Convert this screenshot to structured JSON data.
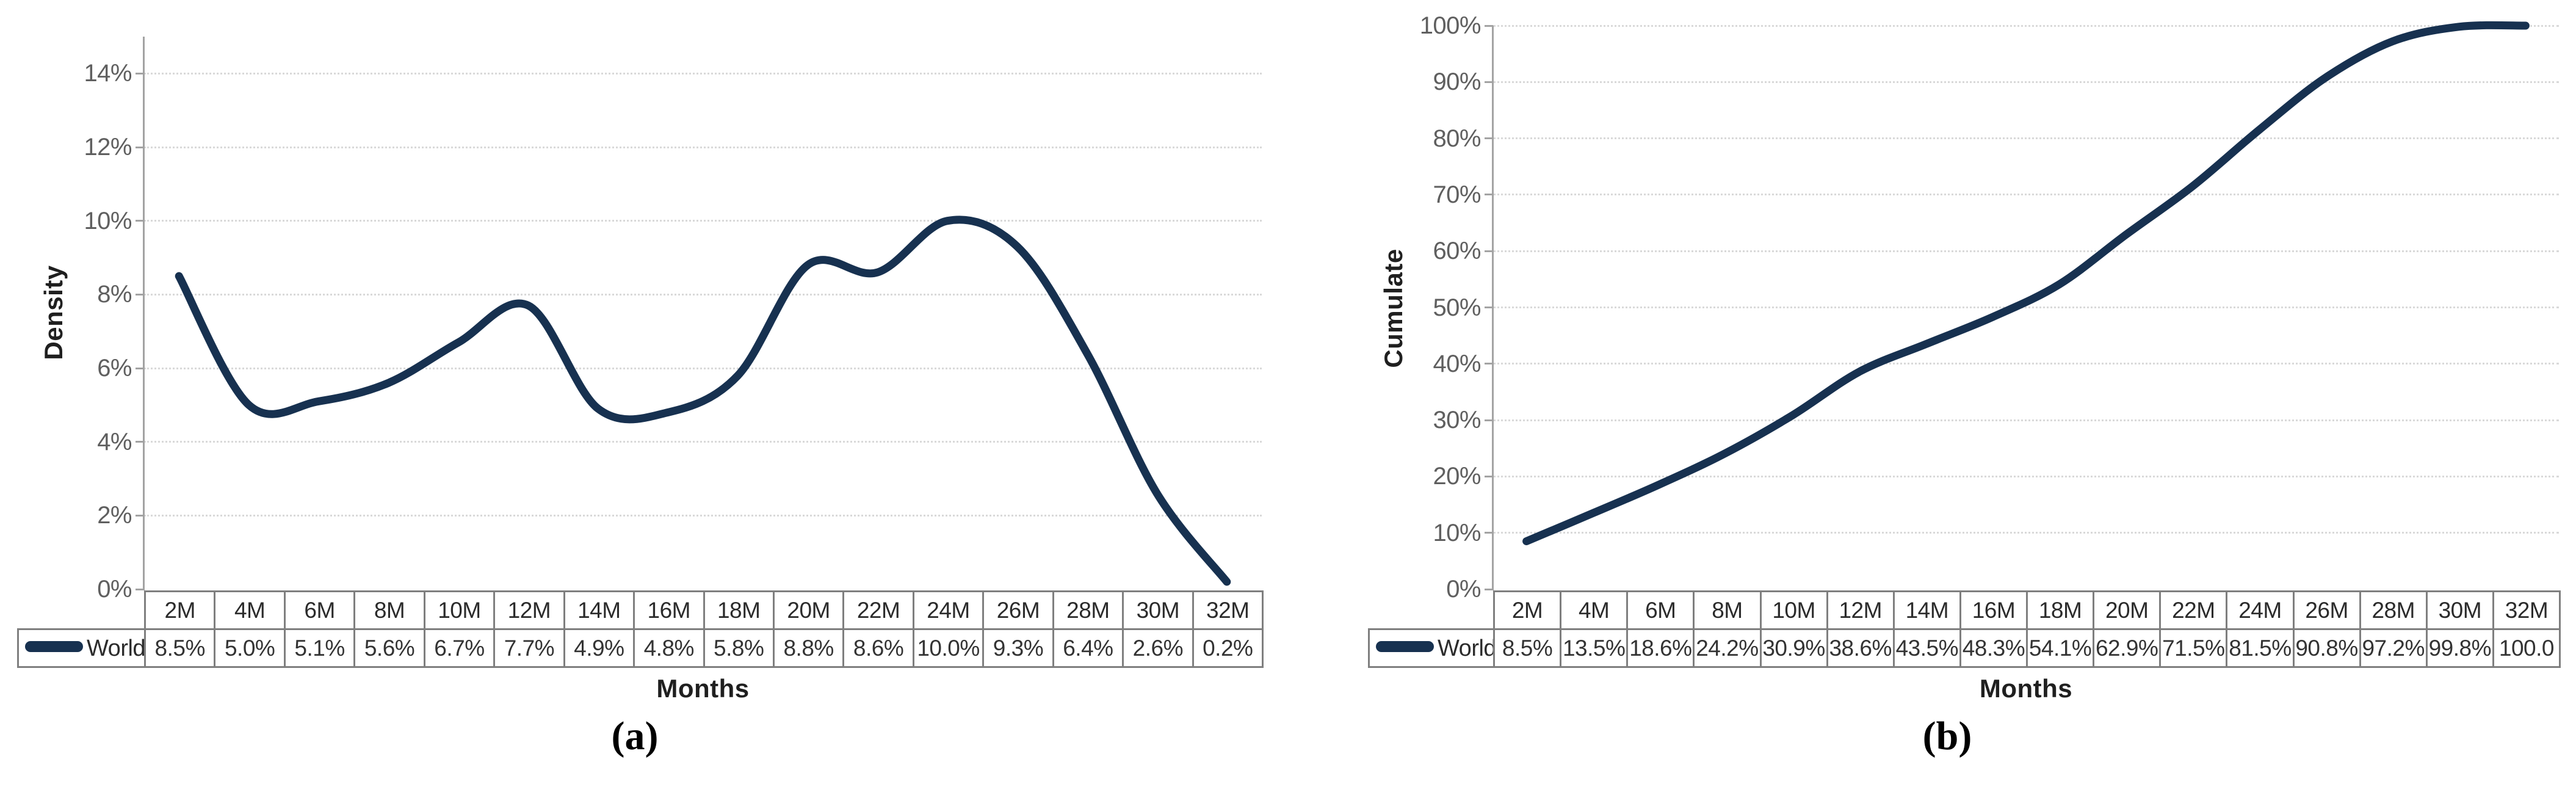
{
  "figure": {
    "series_name": "World",
    "x_axis_title": "Months",
    "line_color": "#173150"
  },
  "chart_data": [
    {
      "id": "a",
      "type": "line",
      "caption": "(a)",
      "title": "",
      "xlabel": "Months",
      "ylabel": "Density",
      "legend": "World",
      "legend_position": "table-left",
      "grid": "horizontal-dotted",
      "smooth": true,
      "line_color": "#173150",
      "categories": [
        "2M",
        "4M",
        "6M",
        "8M",
        "10M",
        "12M",
        "14M",
        "16M",
        "18M",
        "20M",
        "22M",
        "24M",
        "26M",
        "28M",
        "30M",
        "32M"
      ],
      "values": [
        8.5,
        5.0,
        5.1,
        5.6,
        6.7,
        7.7,
        4.9,
        4.8,
        5.8,
        8.8,
        8.6,
        10.0,
        9.3,
        6.4,
        2.6,
        0.2
      ],
      "table_values": [
        "8.5%",
        "5.0%",
        "5.1%",
        "5.6%",
        "6.7%",
        "7.7%",
        "4.9%",
        "4.8%",
        "5.8%",
        "8.8%",
        "8.6%",
        "10.0%",
        "9.3%",
        "6.4%",
        "2.6%",
        "0.2%"
      ],
      "ylim": [
        0,
        15
      ],
      "y_ticks": [
        {
          "value": 0,
          "label": "0%"
        },
        {
          "value": 2,
          "label": "2%"
        },
        {
          "value": 4,
          "label": "4%"
        },
        {
          "value": 6,
          "label": "6%"
        },
        {
          "value": 8,
          "label": "8%"
        },
        {
          "value": 10,
          "label": "10%"
        },
        {
          "value": 12,
          "label": "12%"
        },
        {
          "value": 14,
          "label": "14%"
        }
      ]
    },
    {
      "id": "b",
      "type": "line",
      "caption": "(b)",
      "title": "",
      "xlabel": "Months",
      "ylabel": "Cumulate",
      "legend": "World",
      "legend_position": "table-left",
      "grid": "horizontal-dotted",
      "smooth": true,
      "line_color": "#173150",
      "categories": [
        "2M",
        "4M",
        "6M",
        "8M",
        "10M",
        "12M",
        "14M",
        "16M",
        "18M",
        "20M",
        "22M",
        "24M",
        "26M",
        "28M",
        "30M",
        "32M"
      ],
      "values": [
        8.5,
        13.5,
        18.6,
        24.2,
        30.9,
        38.6,
        43.5,
        48.3,
        54.1,
        62.9,
        71.5,
        81.5,
        90.8,
        97.2,
        99.8,
        100.0
      ],
      "table_values": [
        "8.5%",
        "13.5%",
        "18.6%",
        "24.2%",
        "30.9%",
        "38.6%",
        "43.5%",
        "48.3%",
        "54.1%",
        "62.9%",
        "71.5%",
        "81.5%",
        "90.8%",
        "97.2%",
        "99.8%",
        "100.0"
      ],
      "ylim": [
        0,
        100
      ],
      "y_ticks": [
        {
          "value": 0,
          "label": "0%"
        },
        {
          "value": 10,
          "label": "10%"
        },
        {
          "value": 20,
          "label": "20%"
        },
        {
          "value": 30,
          "label": "30%"
        },
        {
          "value": 40,
          "label": "40%"
        },
        {
          "value": 50,
          "label": "50%"
        },
        {
          "value": 60,
          "label": "60%"
        },
        {
          "value": 70,
          "label": "70%"
        },
        {
          "value": 80,
          "label": "80%"
        },
        {
          "value": 90,
          "label": "90%"
        },
        {
          "value": 100,
          "label": "100%"
        }
      ]
    }
  ]
}
